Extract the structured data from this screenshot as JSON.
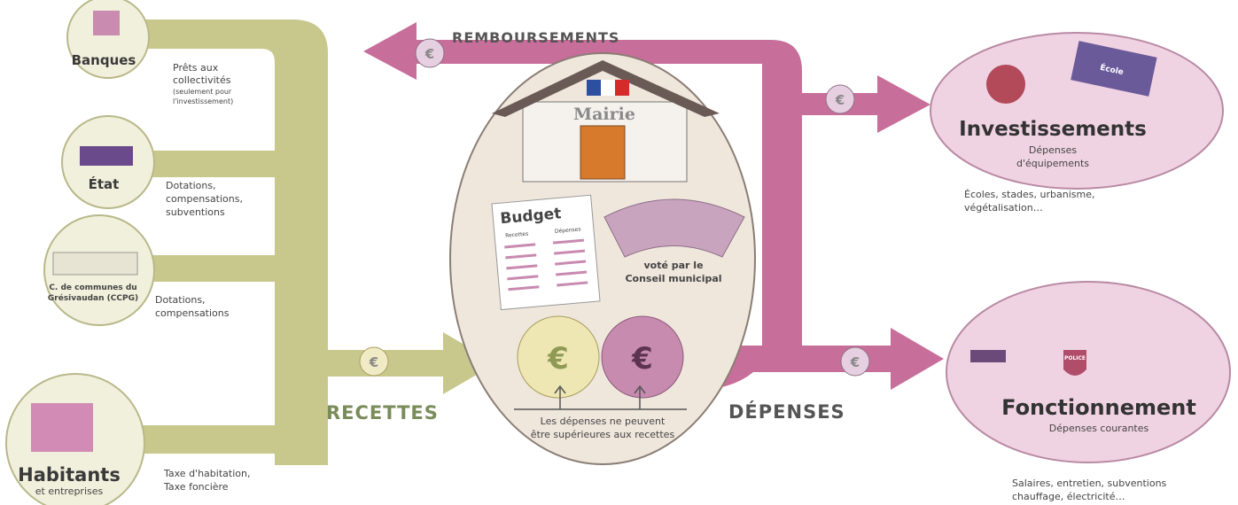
{
  "flows": {
    "remboursements": "REMBOURSEMENTS",
    "recettes": "RECETTES",
    "depenses": "DÉPENSES"
  },
  "currency_symbol": "€",
  "sources": [
    {
      "name": "Banques",
      "description": [
        "Prêts aux",
        "collectivités"
      ],
      "note": [
        "(seulement pour",
        "l'investissement)"
      ]
    },
    {
      "name": "État",
      "description": [
        "Dotations,",
        "compensations,",
        "subventions"
      ]
    },
    {
      "name": [
        "C. de communes du",
        "Grésivaudan (CCPG)"
      ],
      "description": [
        "Dotations,",
        "compensations"
      ]
    },
    {
      "name": "Habitants",
      "subname": "et entreprises",
      "description": [
        "Taxe d'habitation,",
        "Taxe foncière"
      ]
    }
  ],
  "mairie": {
    "label": "Mairie",
    "budget": {
      "title": "Budget",
      "columns": [
        "Recettes",
        "Dépenses"
      ]
    },
    "vote": [
      "voté par le",
      "Conseil municipal"
    ],
    "rule": [
      "Les dépenses ne peuvent",
      "être supérieures aux recettes"
    ]
  },
  "uses": [
    {
      "name": "Investissements",
      "subtitle": [
        "Dépenses",
        "d'équipements"
      ],
      "examples": [
        "Écoles, stades, urbanisme,",
        "végétalisation…"
      ],
      "sign": "École"
    },
    {
      "name": "Fonctionnement",
      "subtitle": "Dépenses courantes",
      "examples": [
        "Salaires, entretien, subventions",
        "chauffage, électricité…"
      ],
      "badge": "POLICE"
    }
  ]
}
